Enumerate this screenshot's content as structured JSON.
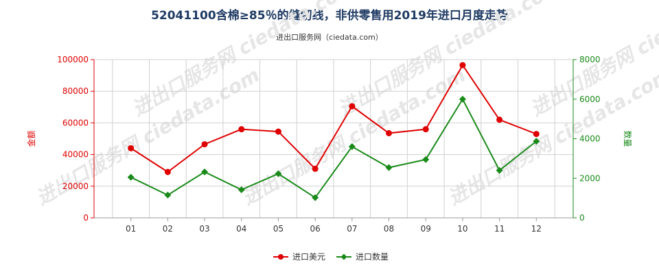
{
  "title": "52041100含棉≥85％的缝纫线，非供零售用2019年进口月度走势",
  "subtitle": "进出口服务网（ciedata.com）",
  "watermark": "进出口服务网 ciedata.com",
  "colors": {
    "left_axis": "#e00000",
    "right_axis": "#1a8a1a",
    "grid": "#d0d0d0"
  },
  "chart_data": {
    "type": "line",
    "categories": [
      "01",
      "02",
      "03",
      "04",
      "05",
      "06",
      "07",
      "08",
      "09",
      "10",
      "11",
      "12"
    ],
    "y_left": {
      "label": "金额",
      "ylim": [
        0,
        100000
      ],
      "ticks": [
        0,
        20000,
        40000,
        60000,
        80000,
        100000
      ]
    },
    "y_right": {
      "label": "数量",
      "ylim": [
        0,
        8000
      ],
      "ticks": [
        0,
        2000,
        4000,
        6000,
        8000
      ]
    },
    "series": [
      {
        "name": "进口美元",
        "axis": "left",
        "color": "#e00000",
        "values": [
          44000,
          29000,
          46500,
          56000,
          54500,
          31000,
          70500,
          53500,
          56000,
          96500,
          62000,
          53000
        ]
      },
      {
        "name": "进口数量",
        "axis": "right",
        "color": "#1a8a1a",
        "values": [
          2050,
          1150,
          2320,
          1420,
          2230,
          1020,
          3600,
          2540,
          2950,
          6000,
          2400,
          3870
        ]
      }
    ],
    "grid": true,
    "legend": "bottom-center"
  }
}
